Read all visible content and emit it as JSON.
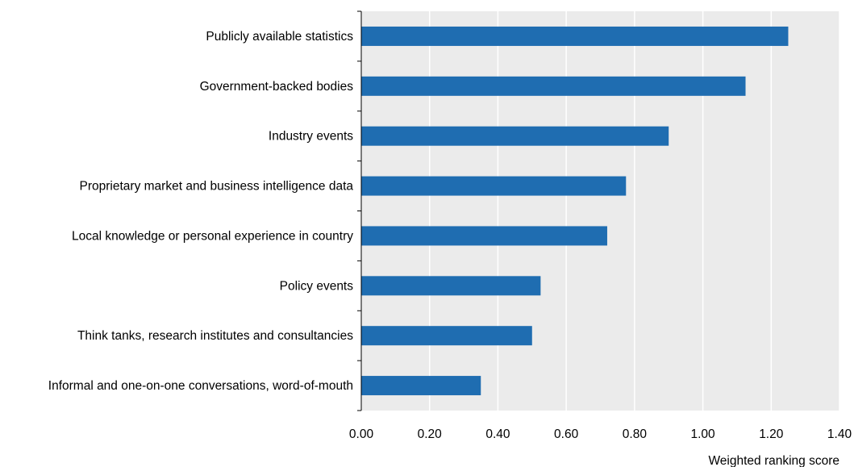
{
  "chart_data": {
    "type": "bar",
    "orientation": "horizontal",
    "categories": [
      "Publicly available statistics",
      "Government-backed bodies",
      "Industry events",
      "Proprietary market and business intelligence data",
      "Local knowledge or personal experience in country",
      "Policy events ",
      "Think tanks, research institutes and consultancies",
      "Informal and one-on-one conversations, word-of-mouth"
    ],
    "values": [
      1.25,
      1.125,
      0.9,
      0.775,
      0.72,
      0.525,
      0.5,
      0.35
    ],
    "xlabel": "Weighted ranking score",
    "xlim": [
      0,
      1.4
    ],
    "xticks": [
      "0.00",
      "0.20",
      "0.40",
      "0.60",
      "0.80",
      "1.00",
      "1.20",
      "1.40"
    ],
    "bar_color": "#1f6db1",
    "plot_background": "#ebebeb",
    "grid": true
  }
}
